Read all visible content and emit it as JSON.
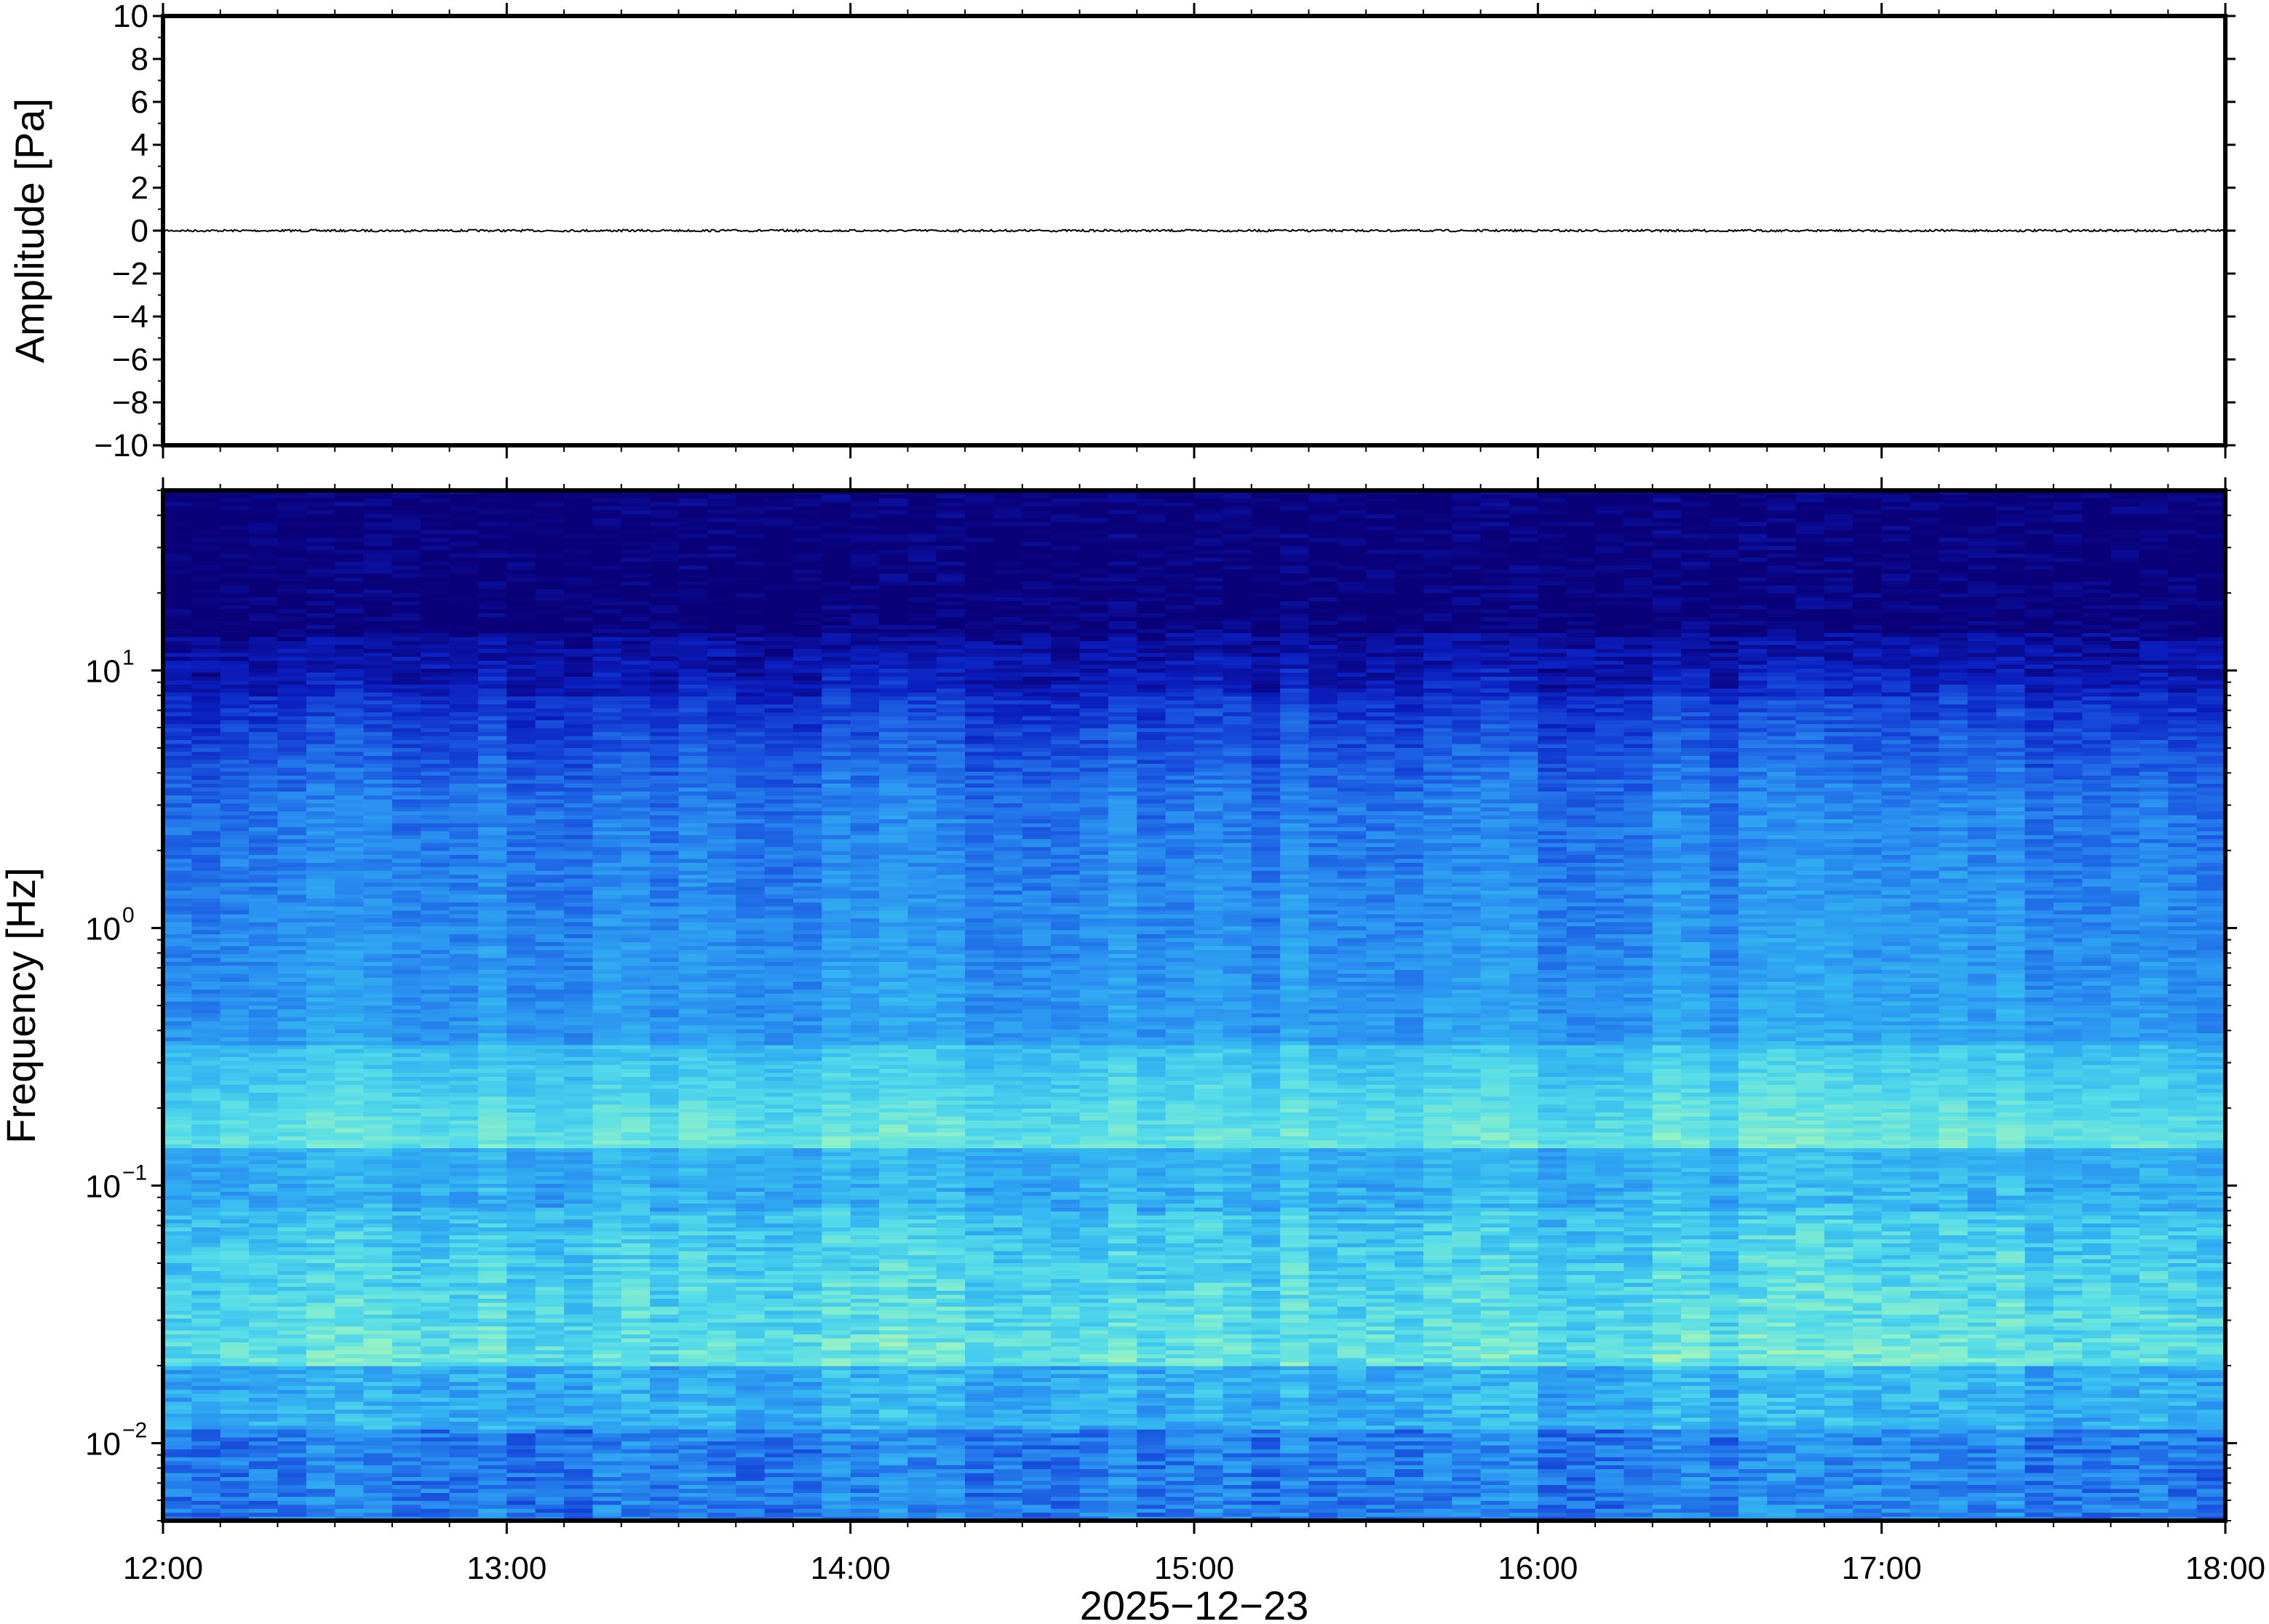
{
  "chart_data": [
    {
      "type": "line",
      "title": "",
      "xlabel": "",
      "ylabel": "Amplitude [Pa]",
      "ylim": [
        -10,
        10
      ],
      "yticks": [
        "10",
        "8",
        "6",
        "4",
        "2",
        "0",
        "−2",
        "−4",
        "−6",
        "−8",
        "−10"
      ],
      "xlim": [
        "12:00",
        "18:00"
      ],
      "series": [
        {
          "values_description_free": true,
          "x": [
            "12:00",
            "13:00",
            "14:00",
            "15:00",
            "16:00",
            "17:00",
            "18:00"
          ],
          "y": [
            0,
            0,
            0,
            0,
            0,
            0,
            0
          ]
        }
      ],
      "grid": false,
      "line_color": "#000000"
    },
    {
      "type": "heatmap",
      "title": "",
      "xlabel": "2025−12−23",
      "ylabel": "Frequency [Hz]",
      "xticks": [
        "12:00",
        "13:00",
        "14:00",
        "15:00",
        "16:00",
        "17:00",
        "18:00"
      ],
      "yscale": "log",
      "ylim": [
        0.005,
        50
      ],
      "yticks": [
        {
          "base": "10",
          "exp": "1",
          "value": 10
        },
        {
          "base": "10",
          "exp": "0",
          "value": 1
        },
        {
          "base": "10",
          "exp": "−1",
          "value": 0.1
        },
        {
          "base": "10",
          "exp": "−2",
          "value": 0.01
        }
      ],
      "colormap": [
        "#0a0078",
        "#0b1fc0",
        "#1a56e0",
        "#2a90f0",
        "#34b8f0",
        "#55dce8",
        "#8ef0c8",
        "#d8f590"
      ],
      "grid": false
    }
  ]
}
